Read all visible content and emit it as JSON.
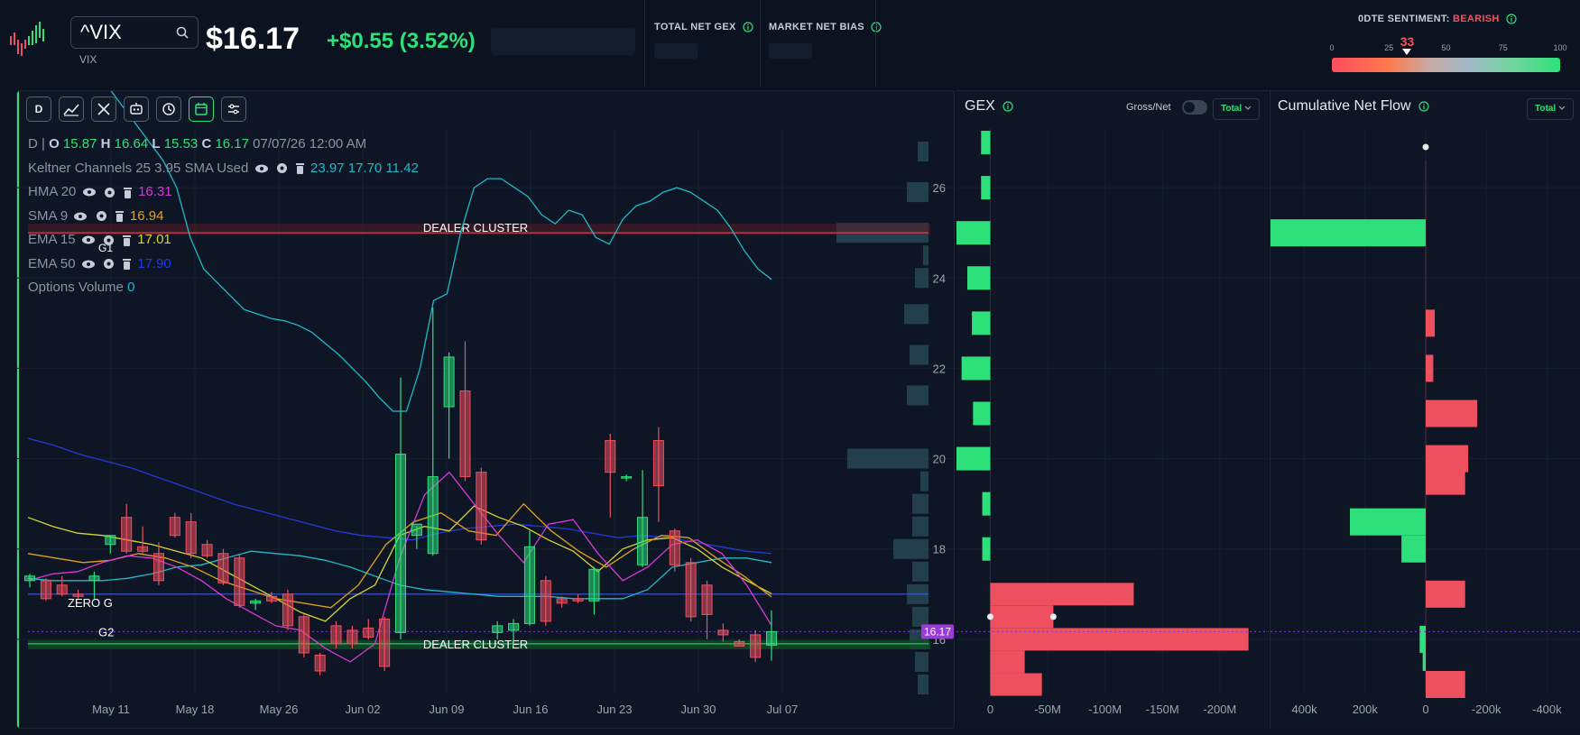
{
  "header": {
    "symbol": "^VIX",
    "symbol_sub": "VIX",
    "price": "$16.17",
    "change": "+$0.55 (3.52%)",
    "total_net_gex_label": "TOTAL NET GEX",
    "market_net_bias_label": "MARKET NET BIAS",
    "sentiment_label": "0DTE SENTIMENT:",
    "sentiment_value": "BEARISH",
    "sentiment_score": "33",
    "sentiment_ticks": [
      "0",
      "25",
      "50",
      "75",
      "100"
    ],
    "sentiment_level": 33
  },
  "colors": {
    "bull": "#2ee07a",
    "bear": "#ef5060",
    "keltner": "#22b8c8",
    "hma": "#d63ad6",
    "sma": "#e0a020",
    "ema15": "#d6d630",
    "ema50": "#2438d6"
  },
  "toolbar": {
    "buttons": [
      "D",
      "chart-type-icon",
      "drawing-tools-icon",
      "indicators-icon",
      "replay-icon",
      "calendar-icon",
      "settings-sliders-icon"
    ]
  },
  "legend": {
    "ohlc": {
      "period": "D",
      "o_label": "O",
      "o": "15.87",
      "h_label": "H",
      "h": "16.64",
      "l_label": "L",
      "l": "15.53",
      "c_label": "C",
      "c": "16.17",
      "date": "07/07/26 12:00 AM"
    },
    "keltner": {
      "name": "Keltner Channels",
      "params": "25 3.95 SMA Used",
      "upper": "23.97",
      "mid": "17.70",
      "lower": "11.42"
    },
    "hma": {
      "name": "HMA",
      "param": "20",
      "value": "16.31"
    },
    "sma": {
      "name": "SMA",
      "param": "9",
      "value": "16.94"
    },
    "ema15": {
      "name": "EMA",
      "param": "15",
      "value": "17.01"
    },
    "ema50": {
      "name": "EMA",
      "param": "50",
      "value": "17.90"
    },
    "options_volume": {
      "name": "Options Volume",
      "value": "0"
    }
  },
  "chart_data": [
    {
      "type": "candlestick",
      "title": "^VIX",
      "x_labels": [
        "May 11",
        "May 18",
        "May 26",
        "Jun 02",
        "Jun 09",
        "Jun 16",
        "Jun 23",
        "Jun 30",
        "Jul 07"
      ],
      "y_ticks": [
        16,
        18,
        20,
        22,
        24,
        26
      ],
      "ylim": [
        14.8,
        27.3
      ],
      "last_price_label": "16.17",
      "candles": [
        {
          "o": 17.3,
          "h": 17.45,
          "l": 17.15,
          "c": 17.4
        },
        {
          "o": 17.3,
          "h": 17.35,
          "l": 16.85,
          "c": 16.9
        },
        {
          "o": 17.2,
          "h": 17.4,
          "l": 16.95,
          "c": 17.0
        },
        {
          "o": 17.0,
          "h": 17.1,
          "l": 16.9,
          "c": 16.95
        },
        {
          "o": 17.3,
          "h": 17.5,
          "l": 16.9,
          "c": 17.4
        },
        {
          "o": 18.1,
          "h": 18.3,
          "l": 17.9,
          "c": 18.3
        },
        {
          "o": 18.7,
          "h": 19.0,
          "l": 17.9,
          "c": 17.95
        },
        {
          "o": 18.05,
          "h": 18.5,
          "l": 17.9,
          "c": 17.95
        },
        {
          "o": 17.9,
          "h": 18.15,
          "l": 17.2,
          "c": 17.3
        },
        {
          "o": 18.7,
          "h": 18.8,
          "l": 18.25,
          "c": 18.3
        },
        {
          "o": 18.6,
          "h": 18.8,
          "l": 17.8,
          "c": 17.9
        },
        {
          "o": 18.1,
          "h": 18.2,
          "l": 17.8,
          "c": 17.85
        },
        {
          "o": 17.9,
          "h": 18.0,
          "l": 17.2,
          "c": 17.25
        },
        {
          "o": 17.8,
          "h": 17.9,
          "l": 16.7,
          "c": 16.75
        },
        {
          "o": 16.8,
          "h": 16.9,
          "l": 16.65,
          "c": 16.85
        },
        {
          "o": 16.95,
          "h": 17.05,
          "l": 16.8,
          "c": 16.85
        },
        {
          "o": 17.0,
          "h": 17.1,
          "l": 16.2,
          "c": 16.3
        },
        {
          "o": 16.5,
          "h": 16.55,
          "l": 15.6,
          "c": 15.7
        },
        {
          "o": 15.65,
          "h": 15.7,
          "l": 15.2,
          "c": 15.3
        },
        {
          "o": 16.3,
          "h": 16.4,
          "l": 15.8,
          "c": 15.9
        },
        {
          "o": 16.2,
          "h": 16.3,
          "l": 15.8,
          "c": 15.9
        },
        {
          "o": 16.25,
          "h": 16.45,
          "l": 16.0,
          "c": 16.05
        },
        {
          "o": 16.45,
          "h": 16.5,
          "l": 15.3,
          "c": 15.4
        },
        {
          "o": 16.15,
          "h": 21.8,
          "l": 16.0,
          "c": 20.1
        },
        {
          "o": 18.3,
          "h": 18.5,
          "l": 18.0,
          "c": 18.55
        },
        {
          "o": 17.9,
          "h": 23.35,
          "l": 17.85,
          "c": 19.6
        },
        {
          "o": 21.15,
          "h": 22.35,
          "l": 20.0,
          "c": 22.25
        },
        {
          "o": 21.5,
          "h": 22.6,
          "l": 19.5,
          "c": 19.6
        },
        {
          "o": 19.7,
          "h": 19.8,
          "l": 18.1,
          "c": 18.2
        },
        {
          "o": 16.15,
          "h": 16.4,
          "l": 16.0,
          "c": 16.3
        },
        {
          "o": 16.2,
          "h": 16.45,
          "l": 15.85,
          "c": 16.35
        },
        {
          "o": 16.35,
          "h": 18.4,
          "l": 16.3,
          "c": 18.05
        },
        {
          "o": 17.3,
          "h": 17.4,
          "l": 16.3,
          "c": 16.4
        },
        {
          "o": 16.9,
          "h": 16.95,
          "l": 16.7,
          "c": 16.8
        },
        {
          "o": 16.9,
          "h": 17.0,
          "l": 16.8,
          "c": 16.85
        },
        {
          "o": 16.85,
          "h": 17.6,
          "l": 16.55,
          "c": 17.55
        },
        {
          "o": 20.4,
          "h": 20.55,
          "l": 18.7,
          "c": 19.7
        },
        {
          "o": 19.6,
          "h": 19.65,
          "l": 19.5,
          "c": 19.6
        },
        {
          "o": 17.65,
          "h": 19.75,
          "l": 17.6,
          "c": 18.7
        },
        {
          "o": 20.4,
          "h": 20.7,
          "l": 18.6,
          "c": 19.4
        },
        {
          "o": 18.4,
          "h": 18.45,
          "l": 17.5,
          "c": 17.65
        },
        {
          "o": 17.7,
          "h": 17.8,
          "l": 16.4,
          "c": 16.5
        },
        {
          "o": 17.2,
          "h": 17.3,
          "l": 16.0,
          "c": 16.55
        },
        {
          "o": 16.2,
          "h": 16.35,
          "l": 15.95,
          "c": 16.1
        },
        {
          "o": 15.95,
          "h": 16.0,
          "l": 15.9,
          "c": 15.85
        },
        {
          "o": 16.1,
          "h": 16.2,
          "l": 15.5,
          "c": 15.6
        },
        {
          "o": 15.87,
          "h": 16.64,
          "l": 15.53,
          "c": 16.17
        }
      ],
      "overlays": {
        "keltner_upper": [
          31.5,
          30.8,
          30.2,
          29.7,
          29.3,
          28.7,
          28.2,
          27.8,
          27.4,
          27.0,
          26.6,
          26.0,
          24.9,
          24.2,
          23.9,
          23.6,
          23.3,
          23.2,
          23.1,
          23.05,
          22.95,
          22.8,
          22.55,
          22.3,
          22.0,
          21.7,
          21.35,
          21.05,
          21.05,
          22.0,
          23.5,
          23.65,
          25.0,
          26.0,
          26.2,
          26.2,
          26.0,
          25.8,
          25.4,
          25.2,
          25.5,
          25.4,
          24.9,
          24.75,
          25.3,
          25.6,
          25.7,
          25.9,
          26.0,
          25.9,
          25.7,
          25.5,
          25.1,
          24.6,
          24.2,
          23.97
        ],
        "keltner_mid": [
          17.35,
          17.3,
          17.3,
          17.3,
          17.35,
          17.45,
          17.6,
          17.65,
          17.8,
          17.95,
          17.9,
          17.85,
          17.75,
          17.6,
          17.4,
          17.2,
          17.1,
          17.05,
          17.0,
          16.95,
          16.95,
          16.95,
          16.9,
          16.9,
          16.9,
          17.1,
          17.6,
          17.7,
          17.8,
          17.8,
          17.7
        ],
        "ema50": [
          20.45,
          20.3,
          20.1,
          19.95,
          19.8,
          19.6,
          19.4,
          19.2,
          19.0,
          18.85,
          18.7,
          18.55,
          18.4,
          18.3,
          18.25,
          18.2,
          18.35,
          18.45,
          18.5,
          18.55,
          18.5,
          18.45,
          18.35,
          18.25,
          18.3,
          18.25,
          18.15,
          18.05,
          17.95,
          17.9
        ],
        "ema15": [
          18.7,
          18.5,
          18.35,
          18.3,
          18.2,
          18.1,
          17.95,
          17.8,
          17.5,
          17.2,
          16.9,
          16.6,
          16.4,
          16.9,
          17.2,
          18.3,
          18.5,
          18.4,
          18.95,
          18.7,
          18.5,
          18.2,
          17.95,
          17.5,
          18.0,
          18.2,
          18.25,
          18.0,
          17.6,
          17.3,
          17.01
        ],
        "sma": [
          17.9,
          17.8,
          17.7,
          17.75,
          17.9,
          17.8,
          17.6,
          17.3,
          17.1,
          16.9,
          16.8,
          16.7,
          17.2,
          18.1,
          18.6,
          18.8,
          18.4,
          18.3,
          19.0,
          18.4,
          17.95,
          17.6,
          18.0,
          18.3,
          18.25,
          17.8,
          17.4,
          16.94
        ],
        "hma": [
          17.3,
          17.45,
          17.5,
          17.7,
          17.85,
          17.8,
          17.6,
          17.3,
          16.9,
          16.6,
          16.3,
          16.2,
          15.8,
          15.5,
          15.9,
          17.8,
          19.2,
          19.7,
          19.0,
          18.3,
          17.7,
          18.55,
          18.65,
          17.9,
          17.3,
          17.6,
          18.1,
          18.2,
          17.9,
          17.2,
          16.31
        ]
      },
      "levels": [
        {
          "label": "DEALER CLUSTER",
          "value": 25.0,
          "color": "#ef5060"
        },
        {
          "label": "ZERO G",
          "value": 17.0,
          "color": "#3a5ad6"
        },
        {
          "label": "G1",
          "value": 24.7
        },
        {
          "label": "G2",
          "value": 16.17
        },
        {
          "label": "DEALER CLUSTER",
          "value": 15.9,
          "color": "#2ee07a"
        }
      ],
      "volume_profile": [
        {
          "price": 26.8,
          "v": 0.4
        },
        {
          "price": 25.9,
          "v": 0.8
        },
        {
          "price": 25.0,
          "v": 3.4
        },
        {
          "price": 24.5,
          "v": 0.2
        },
        {
          "price": 24.0,
          "v": 0.5
        },
        {
          "price": 23.2,
          "v": 0.9
        },
        {
          "price": 22.3,
          "v": 0.7
        },
        {
          "price": 21.4,
          "v": 0.8
        },
        {
          "price": 20.0,
          "v": 3.0
        },
        {
          "price": 19.5,
          "v": 0.3
        },
        {
          "price": 19.0,
          "v": 0.6
        },
        {
          "price": 18.5,
          "v": 0.6
        },
        {
          "price": 18.0,
          "v": 1.3
        },
        {
          "price": 17.5,
          "v": 0.6
        },
        {
          "price": 17.0,
          "v": 0.8
        },
        {
          "price": 16.5,
          "v": 0.6
        },
        {
          "price": 16.0,
          "v": 0.7
        },
        {
          "price": 15.5,
          "v": 0.5
        },
        {
          "price": 15.0,
          "v": 0.4
        }
      ]
    },
    {
      "type": "bar",
      "title": "GEX",
      "orientation": "horizontal",
      "x_ticks": [
        "0",
        "-50M",
        "-100M",
        "-150M",
        "-200M"
      ],
      "xlim": [
        20,
        -230
      ],
      "ylim": [
        14.8,
        27.3
      ],
      "y_ticks": [
        16,
        18,
        20,
        22,
        24,
        26
      ],
      "bars": [
        {
          "price": 27.0,
          "v": 8
        },
        {
          "price": 26.0,
          "v": 8
        },
        {
          "price": 25.0,
          "v": 32
        },
        {
          "price": 24.0,
          "v": 20
        },
        {
          "price": 23.0,
          "v": 16
        },
        {
          "price": 22.0,
          "v": 25
        },
        {
          "price": 21.0,
          "v": 15
        },
        {
          "price": 20.0,
          "v": 30
        },
        {
          "price": 19.0,
          "v": 7
        },
        {
          "price": 18.0,
          "v": 7
        },
        {
          "price": 17.0,
          "v": -125
        },
        {
          "price": 16.5,
          "v": -55
        },
        {
          "price": 16.0,
          "v": -225
        },
        {
          "price": 15.5,
          "v": -30
        },
        {
          "price": 15.0,
          "v": -45
        }
      ],
      "markers": [
        {
          "price": 16.5,
          "v": 0
        },
        {
          "price": 16.5,
          "v": -55
        }
      ]
    },
    {
      "type": "bar",
      "title": "Cumulative Net Flow",
      "orientation": "horizontal",
      "x_ticks": [
        "400k",
        "200k",
        "0",
        "-200k",
        "-400k"
      ],
      "xlim": [
        500,
        -500
      ],
      "ylim": [
        14.8,
        27.3
      ],
      "bars": [
        {
          "price": 25.0,
          "v": 560
        },
        {
          "price": 23.0,
          "v": -30
        },
        {
          "price": 22.0,
          "v": -25
        },
        {
          "price": 21.0,
          "v": -170
        },
        {
          "price": 20.0,
          "v": -140
        },
        {
          "price": 19.5,
          "v": -130
        },
        {
          "price": 18.6,
          "v": 250
        },
        {
          "price": 18.0,
          "v": 80
        },
        {
          "price": 17.0,
          "v": -130
        },
        {
          "price": 16.0,
          "v": 20
        },
        {
          "price": 15.6,
          "v": 10
        },
        {
          "price": 15.0,
          "v": -130
        }
      ],
      "markers": [
        {
          "price": 26.9,
          "v": 0
        }
      ]
    }
  ],
  "gex_panel": {
    "title": "GEX",
    "gross_net_label": "Gross/Net",
    "dropdown": "Total"
  },
  "flow_panel": {
    "title": "Cumulative Net Flow",
    "dropdown": "Total"
  }
}
